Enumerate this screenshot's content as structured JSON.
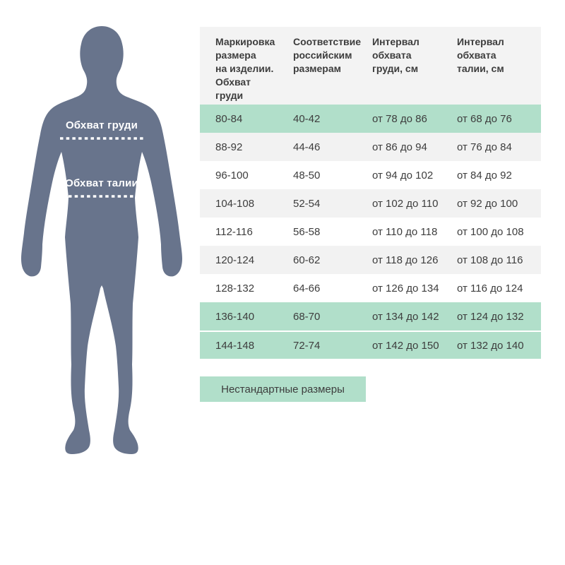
{
  "figure": {
    "silhouette_color": "#68748c",
    "line_color": "#ffffff",
    "chest_label": "Обхват груди",
    "waist_label": "Обхват талии"
  },
  "table": {
    "columns": [
      "Маркировка\nразмера\nна изделии.\nОбхват\nгруди",
      "Соответствие\nроссийским\nразмерам",
      "Интервал\nобхвата\nгруди, см",
      "Интервал\nобхвата\nталии, см"
    ],
    "rows": [
      {
        "size": "80-84",
        "ru": "40-42",
        "chest": "от 78 до 86",
        "waist": "от 68 до 76",
        "highlight": true
      },
      {
        "size": "88-92",
        "ru": "44-46",
        "chest": "от 86 до 94",
        "waist": "от 76 до 84",
        "highlight": false
      },
      {
        "size": "96-100",
        "ru": "48-50",
        "chest": "от 94 до 102",
        "waist": "от 84 до 92",
        "highlight": false
      },
      {
        "size": "104-108",
        "ru": "52-54",
        "chest": "от 102 до 110",
        "waist": "от 92 до 100",
        "highlight": false
      },
      {
        "size": "112-116",
        "ru": "56-58",
        "chest": "от 110 до 118",
        "waist": "от 100 до 108",
        "highlight": false
      },
      {
        "size": "120-124",
        "ru": "60-62",
        "chest": "от 118 до 126",
        "waist": "от 108 до 116",
        "highlight": false
      },
      {
        "size": "128-132",
        "ru": "64-66",
        "chest": "от 126 до 134",
        "waist": "от 116 до 124",
        "highlight": false
      },
      {
        "size": "136-140",
        "ru": "68-70",
        "chest": "от 134 до 142",
        "waist": "от 124 до 132",
        "highlight": true
      },
      {
        "size": "144-148",
        "ru": "72-74",
        "chest": "от 142 до 150",
        "waist": "от 132 до 140",
        "highlight": true
      }
    ]
  },
  "button": {
    "label": "Нестандартные размеры"
  },
  "colors": {
    "highlight_green": "#b1dfca",
    "stripe_gray": "#f2f2f2",
    "header_gray": "#f3f3f3",
    "text_dark": "#3d3d3d"
  }
}
